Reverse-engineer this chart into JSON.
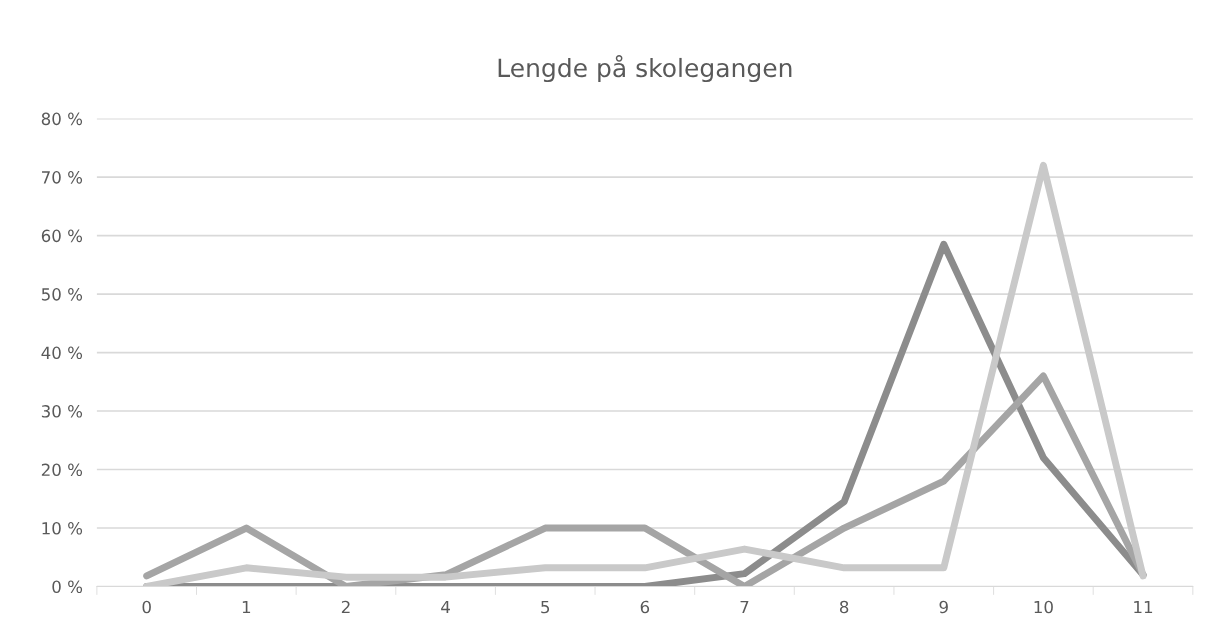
{
  "chart_data": {
    "type": "line",
    "title": "Lengde på skolegangen",
    "categories": [
      "0",
      "1",
      "2",
      "4",
      "5",
      "6",
      "7",
      "8",
      "9",
      "10",
      "11"
    ],
    "series": [
      {
        "color": "#8c8c8c",
        "values": [
          0,
          0,
          0,
          0,
          0,
          0,
          2.2,
          14.5,
          58.5,
          22,
          2
        ]
      },
      {
        "color": "#a5a5a5",
        "values": [
          1.8,
          10,
          0,
          2,
          10,
          10,
          0,
          10,
          18,
          36,
          2
        ]
      },
      {
        "color": "#c9c9c9",
        "values": [
          0,
          3.2,
          1.6,
          1.6,
          3.2,
          3.2,
          6.4,
          3.2,
          3.2,
          72,
          1.8
        ]
      }
    ],
    "ylim": [
      0,
      80
    ],
    "yticks": [
      {
        "value": 0,
        "label": "0 %"
      },
      {
        "value": 10,
        "label": "10 %"
      },
      {
        "value": 20,
        "label": "20 %"
      },
      {
        "value": 30,
        "label": "30 %"
      },
      {
        "value": 40,
        "label": "40 %"
      },
      {
        "value": 50,
        "label": "50 %"
      },
      {
        "value": 60,
        "label": "60 %"
      },
      {
        "value": 70,
        "label": "70 %"
      },
      {
        "value": 80,
        "label": "80 %"
      }
    ],
    "grid": "y"
  }
}
